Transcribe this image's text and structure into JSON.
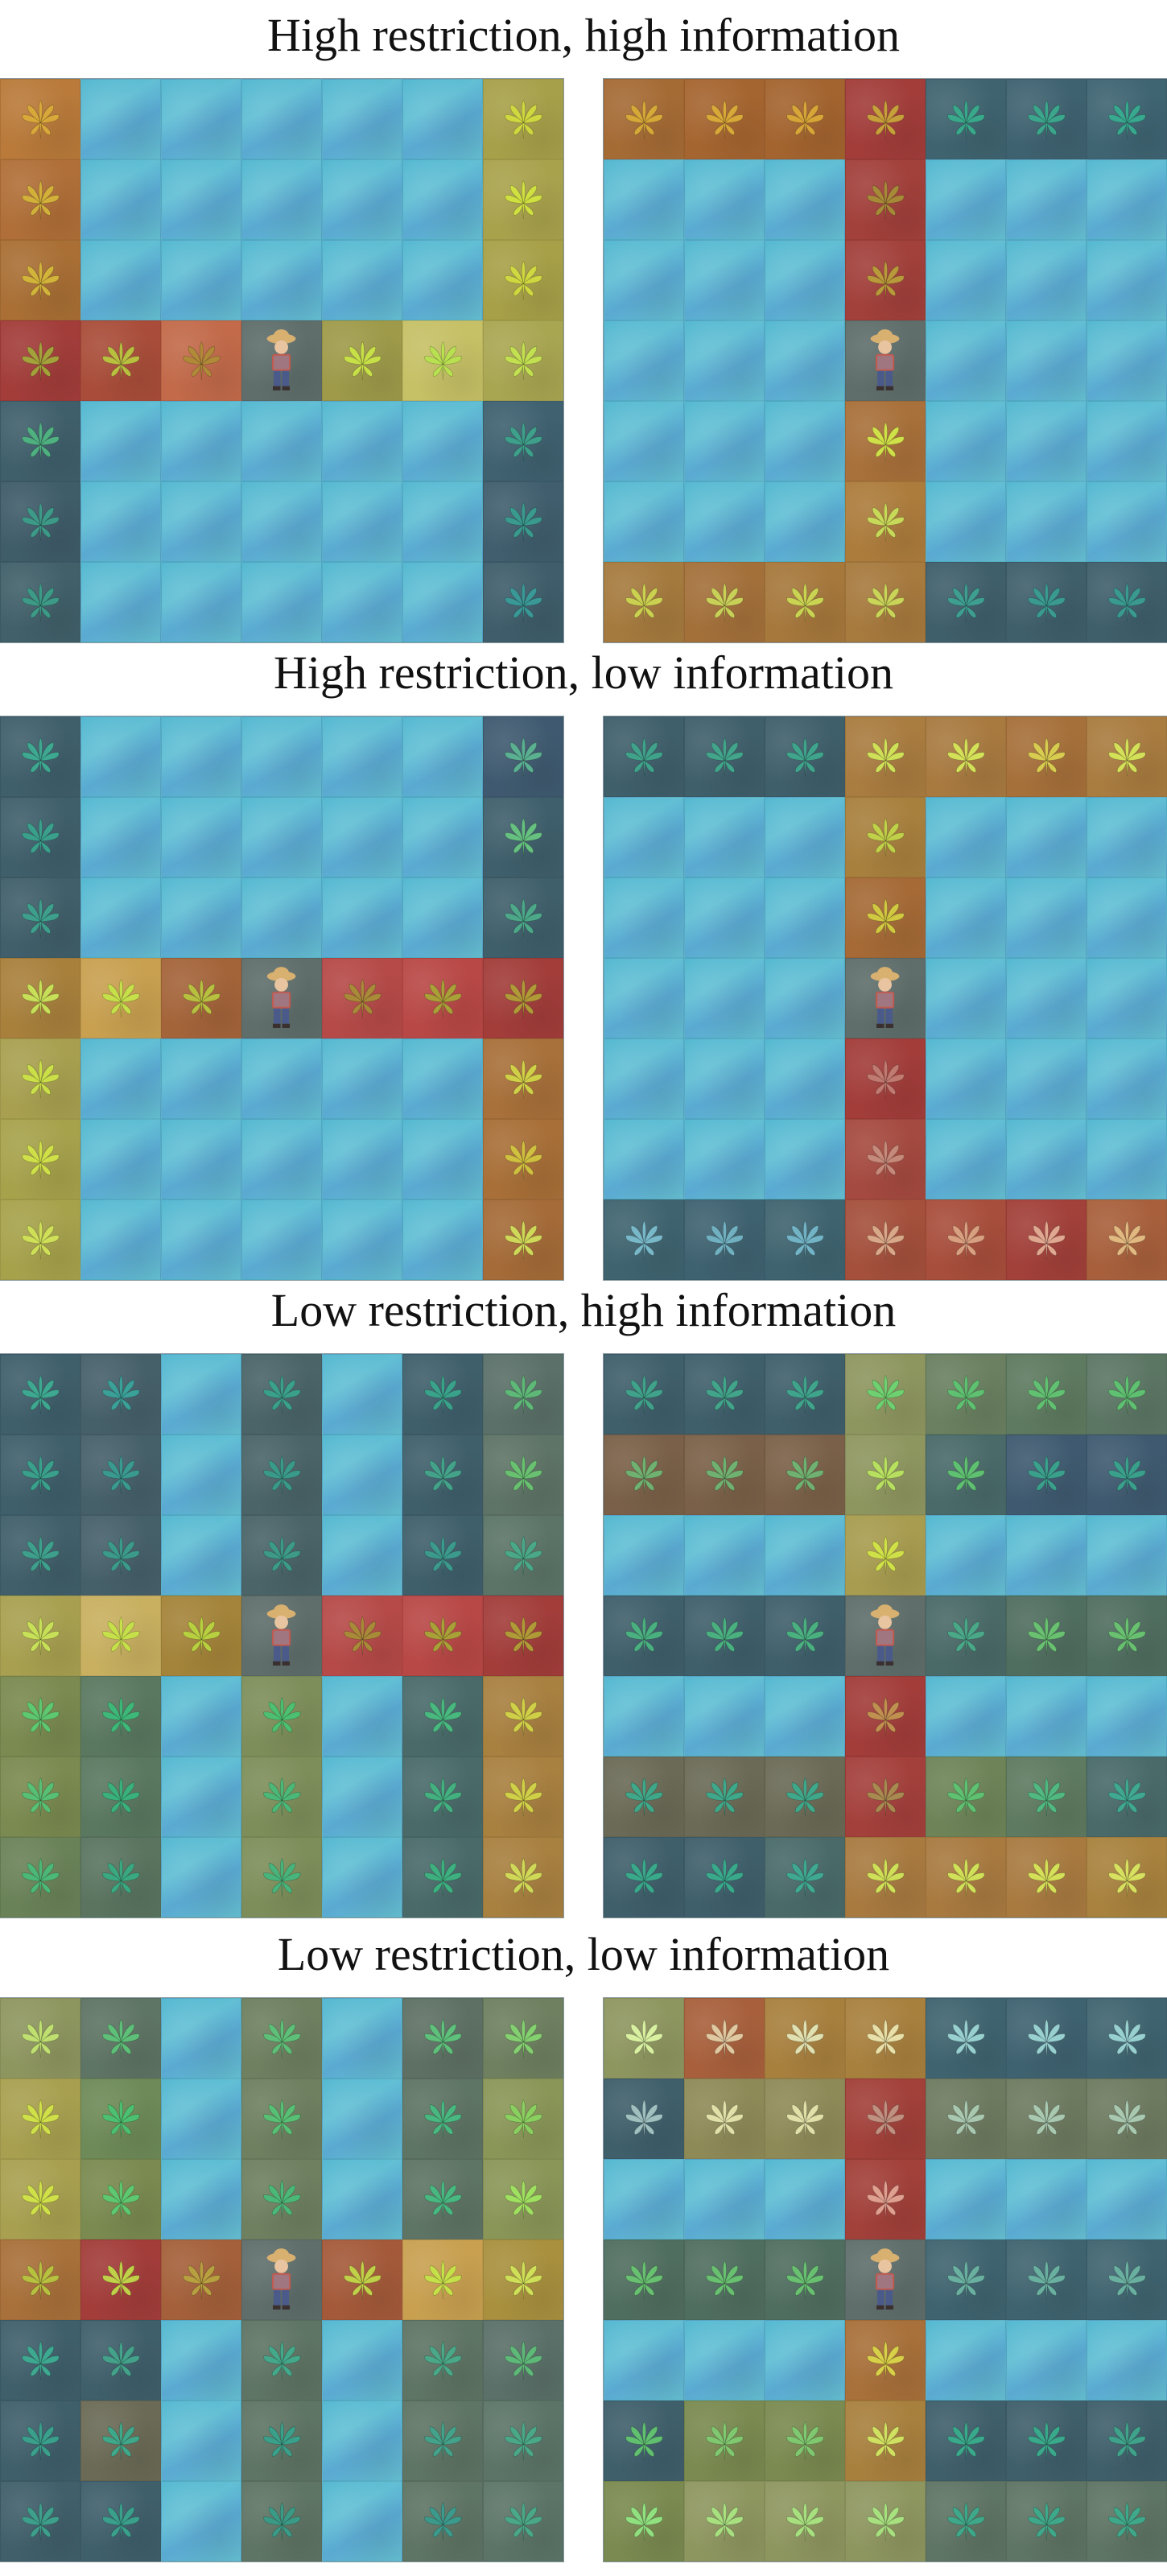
{
  "legend": {
    "W": "water",
    "S": "stone path (patch)",
    "P": "plant patch",
    "A": "agent (farmer)"
  },
  "colors": {
    "water": "#5bb7d1",
    "agent_tile": "#5f6e6b"
  },
  "sections": [
    {
      "title": "High restriction, high information",
      "boards": [
        {
          "grid": [
            [
              "P|#b97a3a|#d9a83a",
              "W",
              "W",
              "W",
              "W",
              "W",
              "P|#a7a04a|#d0d840"
            ],
            [
              "P|#b06f38|#d2b03a",
              "W",
              "W",
              "W",
              "W",
              "W",
              "P|#a9a24d|#cfe040"
            ],
            [
              "P|#a96f35|#d3b43a",
              "W",
              "W",
              "W",
              "W",
              "W",
              "P|#a7a048|#cfd840"
            ],
            [
              "P|#a23d3a|#a4a23a",
              "P|#a94d3a|#b9c040",
              "P|#c26a4a|#b08a38",
              "A",
              "P|#9e9a4a|#c8e048",
              "P|#c6c066|#b8e050",
              "P|#a9a652|#c2e050"
            ],
            [
              "P|#3f5f6b|#4fb080",
              "W",
              "W",
              "W",
              "W",
              "W",
              "P|#3f6170|#3ea08a"
            ],
            [
              "P|#3f5c69|#3e9a88",
              "W",
              "W",
              "W",
              "W",
              "W",
              "P|#405e6d|#3a9a8e"
            ],
            [
              "P|#41606a|#3c9a86",
              "W",
              "W",
              "W",
              "W",
              "W",
              "P|#3f5d6b|#3a9896"
            ]
          ]
        },
        {
          "grid": [
            [
              "P|#a56b35|#d6a838",
              "P|#a56530|#d8a838",
              "P|#a3642f|#d8a638",
              "P|#a23d3a|#c6a03a",
              "P|#3f6470|#3aa88a",
              "P|#3f6270|#3ca68c",
              "P|#3f6472|#38a88e"
            ],
            [
              "W",
              "W",
              "W",
              "P|#a2403b|#a68a38",
              "W",
              "W",
              "W"
            ],
            [
              "W",
              "W",
              "W",
              "P|#a2403b|#b89a3a",
              "W",
              "W",
              "W"
            ],
            [
              "W",
              "W",
              "W",
              "A",
              "W",
              "W",
              "W"
            ],
            [
              "W",
              "W",
              "W",
              "P|#a8703a|#cfe048",
              "W",
              "W",
              "W"
            ],
            [
              "W",
              "W",
              "W",
              "P|#ac7c3c|#c8d858",
              "W",
              "W",
              "W"
            ],
            [
              "P|#a57a3e|#cbd050",
              "P|#a3703a|#c9d058",
              "P|#a6783c|#cad452",
              "P|#a77a3e|#c9d458",
              "P|#3f5f6b|#3e9e90",
              "P|#3f5f6b|#3a9a90",
              "P|#3f5f6b|#3a9a90"
            ]
          ]
        }
      ]
    },
    {
      "title": "High restriction, low information",
      "boards": [
        {
          "grid": [
            [
              "P|#3f5f6b|#3ea890",
              "W",
              "W",
              "W",
              "W",
              "W",
              "P|#3f5a70|#5ab090"
            ],
            [
              "P|#3f5f6b|#3aa08c",
              "W",
              "W",
              "W",
              "W",
              "W",
              "P|#3f5f6c|#66c080"
            ],
            [
              "P|#405f6a|#3ea08c",
              "W",
              "W",
              "W",
              "W",
              "W",
              "P|#3f5f6b|#4ca888"
            ],
            [
              "P|#a8803c|#c7e058",
              "P|#c8a050|#c6e04a",
              "P|#a4643a|#b8c040",
              "A",
              "P|#b54a48|#a88a38",
              "P|#b84846|#a9a038",
              "P|#a23d3a|#b09a38"
            ],
            [
              "P|#a8a050|#cbe048",
              "W",
              "W",
              "W",
              "W",
              "W",
              "P|#a8703a|#d0d048"
            ],
            [
              "P|#a6a24c|#d0e048",
              "W",
              "W",
              "W",
              "W",
              "W",
              "P|#a86f38|#d0c040"
            ],
            [
              "P|#a6a24c|#cfe058",
              "W",
              "W",
              "W",
              "W",
              "W",
              "P|#a56b38|#cfd858"
            ]
          ]
        },
        {
          "grid": [
            [
              "P|#3f5f6b|#40a28a",
              "P|#3f5f6b|#42a48a",
              "P|#3f5f6b|#40a48c",
              "P|#a97c40|#cfe058",
              "P|#a87a40|#d4e058",
              "P|#a6703a|#d8cc50",
              "P|#a97c40|#d4e058"
            ],
            [
              "W",
              "W",
              "W",
              "P|#a8803e|#c0d048",
              "W",
              "W",
              "W"
            ],
            [
              "W",
              "W",
              "W",
              "P|#a56a36|#cfc840",
              "W",
              "W",
              "W"
            ],
            [
              "W",
              "W",
              "W",
              "A",
              "W",
              "W",
              "W"
            ],
            [
              "W",
              "W",
              "W",
              "P|#a23d3a|#c07a70",
              "W",
              "W",
              "W"
            ],
            [
              "W",
              "W",
              "W",
              "P|#a54a40|#c68a7a",
              "W",
              "W",
              "W"
            ],
            [
              "P|#3f6470|#78b8c8",
              "P|#3f6270|#70b0c0",
              "P|#3f6470|#72b4c6",
              "P|#a4503c|#d8a888",
              "P|#a84e3c|#d8a080",
              "P|#a2403a|#e0a890",
              "P|#a8603c|#e0b880"
            ]
          ]
        }
      ]
    },
    {
      "title": "Low restriction, high information",
      "boards": [
        {
          "grid": [
            [
              "P|#3f5f6b|#3ea890",
              "S|#46606a|#3aa098",
              "W",
              "S|#4a6468|#3aa08a",
              "W",
              "P|#3f5f6b|#3aa28a",
              "P|#5a7068|#5eb878"
            ],
            [
              "P|#3f5f6b|#3aa08c",
              "S|#46606a|#3a9a90",
              "W",
              "S|#4a6468|#3a9a8a",
              "W",
              "P|#3f5f6b|#44a28a",
              "P|#5e7466|#68c070"
            ],
            [
              "P|#405f6a|#3ea08c",
              "S|#46606a|#3c9a8a",
              "W",
              "S|#4a6468|#3c9a86",
              "W",
              "P|#3f5f6b|#3c9a8c",
              "P|#5c7468|#4aa888"
            ],
            [
              "P|#a8a050|#c7e058",
              "P|#c8b060|#c6e04a",
              "P|#a4843a|#b8d040",
              "A",
              "P|#b54a48|#a88a38",
              "P|#b84846|#a9a038",
              "P|#a23d3a|#b09a38"
            ],
            [
              "P|#7a8a50|#5ec870",
              "P|#5a7860|#3eb878",
              "W",
              "S|#7e8e5a|#4cc070",
              "W",
              "P|#4a6a6a|#48b87e",
              "P|#a88040|#d0d048"
            ],
            [
              "P|#7a8a50|#58c074",
              "P|#5a7860|#3ab07c",
              "W",
              "S|#7e8e5a|#4cb878",
              "W",
              "P|#4a6a6a|#44b080",
              "P|#a88040|#d0d048"
            ],
            [
              "P|#6a8258|#4cb878",
              "P|#5a7460|#3aa880",
              "W",
              "S|#7e8e5a|#48b47c",
              "W",
              "P|#4a6a6a|#3eb080",
              "P|#a88040|#d0d858"
            ]
          ]
        },
        {
          "grid": [
            [
              "P|#3f5f6b|#40a28a",
              "P|#3f5f6b|#42a48a",
              "P|#3f5f6b|#40a48c",
              "P|#8e9660|#6ed070",
              "P|#6a8060|#5ec070",
              "P|#5e7a60|#62c072",
              "P|#5c7664|#5ec070"
            ],
            [
              "P|#7a6048|#70b070",
              "P|#7a6048|#70b070",
              "P|#7a6048|#70b070",
              "P|#8e9660|#b8e060",
              "P|#4a6a6a|#5ec070",
              "P|#3f5a70|#3aa08c",
              "P|#3f5a70|#3aa08c"
            ],
            [
              "W",
              "W",
              "W",
              "P|#a89c50|#cfe048",
              "W",
              "W",
              "W"
            ],
            [
              "P|#3f5f6b|#4ab080",
              "P|#3f5f6b|#4ab080",
              "P|#3f5f6b|#4ab080",
              "A",
              "P|#4a6a68|#4aa888",
              "P|#506e60|#68c070",
              "P|#506e60|#68c070"
            ],
            [
              "W",
              "W",
              "W",
              "P|#a23d3a|#c09050",
              "W",
              "W",
              "W"
            ],
            [
              "P|#6a6a56|#40a88a",
              "P|#6a6a56|#40a88a",
              "P|#6a6a56|#40a88a",
              "P|#a4403c|#a88a50",
              "P|#6e8458|#5ec070",
              "P|#5e7a60|#50b880",
              "P|#4a6a6a|#40a890"
            ],
            [
              "P|#3f5f6b|#3aa88a",
              "P|#3f5f6b|#3aa88a",
              "P|#4a6a6a|#40a890",
              "P|#a87a40|#cfe058",
              "P|#a87a40|#d0e058",
              "P|#a87a40|#d4e058",
              "P|#a8823e|#d8e060"
            ]
          ]
        }
      ]
    },
    {
      "title": "Low restriction, low information",
      "boards": [
        {
          "grid": [
            [
              "P|#8e9660|#bfe070",
              "P|#5e7464|#5ec078",
              "W",
              "S|#6e8060|#5ec078",
              "W",
              "P|#5e7064|#5ec07a",
              "P|#6e8060|#84d070"
            ],
            [
              "P|#a8a050|#cfe048",
              "P|#6e8a58|#4cc070",
              "W",
              "S|#6e8060|#58c074",
              "W",
              "P|#5e7464|#48b880",
              "P|#8a9658|#8ad060"
            ],
            [
              "P|#a8a050|#cfe048",
              "P|#7a8a50|#5ec870",
              "W",
              "S|#6e8060|#4cb878",
              "W",
              "P|#5e7464|#48b880",
              "P|#8a9658|#a0e060"
            ],
            [
              "P|#a8703a|#b8c040",
              "P|#a23d3a|#c0d048",
              "P|#a4603a|#b8a040",
              "A",
              "P|#a45a3a|#c0d048",
              "P|#c8a050|#c6e04a",
              "P|#a8903e|#cfe058"
            ],
            [
              "P|#3f5f6b|#3ea890",
              "P|#3f5f6b|#44a28a",
              "W",
              "S|#5e7464|#44a88a",
              "W",
              "P|#5e7464|#4aa888",
              "P|#5a7068|#5eb878"
            ],
            [
              "P|#3f5f6b|#3aa08c",
              "P|#6a6a56|#40a88a",
              "W",
              "S|#5e7464|#3aa08a",
              "W",
              "P|#5e7464|#44a28a",
              "P|#5c7468|#4aa888"
            ],
            [
              "P|#405f6a|#3ea08c",
              "P|#3f5f6b|#3aa08c",
              "W",
              "S|#5e7464|#3a9a86",
              "W",
              "P|#5e7464|#3c9a8c",
              "P|#5c7468|#4aa888"
            ]
          ]
        },
        {
          "grid": [
            [
              "P|#8e9660|#d8f0a0",
              "P|#a8603c|#e0c8a0",
              "P|#a8803e|#e0e0b0",
              "P|#a8803e|#e8e0a8",
              "P|#3f6470|#98d0d0",
              "P|#3f6270|#98d0d0",
              "P|#3f6470|#98d0d0"
            ],
            [
              "P|#3f5f6b|#a0c0c0",
              "P|#8e8a58|#e0e0a8",
              "P|#8e8a58|#e0e0a8",
              "P|#a2403a|#c09080",
              "P|#6e7a60|#a8c8b0",
              "P|#6e7a60|#a8c8b0",
              "P|#6e7a60|#a8c8b0"
            ],
            [
              "W",
              "W",
              "W",
              "P|#a2403a|#e0a090",
              "W",
              "W",
              "W"
            ],
            [
              "P|#506e60|#68c070",
              "P|#506e60|#68c070",
              "P|#506e60|#68c070",
              "A",
              "P|#3f6470|#6ab0a0",
              "P|#3f6470|#6ab0a0",
              "P|#3f6470|#6ab0a0"
            ],
            [
              "W",
              "W",
              "W",
              "P|#a8703a|#d8d048",
              "W",
              "W",
              "W"
            ],
            [
              "P|#3f5f6b|#60c070",
              "P|#7a8a50|#80c870",
              "P|#7a8a50|#80c870",
              "P|#a8803e|#d0e060",
              "P|#3f5f6b|#3aa88a",
              "P|#3f5f6b|#3aa88a",
              "P|#3f5f6b|#40a28a"
            ],
            [
              "P|#7a8a50|#90e080",
              "P|#8e9660|#a8e080",
              "P|#8e9660|#a8e080",
              "P|#8e9660|#a8e080",
              "P|#5e7464|#40a88a",
              "P|#5e7464|#40a88a",
              "P|#5e7464|#40a88a"
            ]
          ]
        }
      ]
    }
  ]
}
